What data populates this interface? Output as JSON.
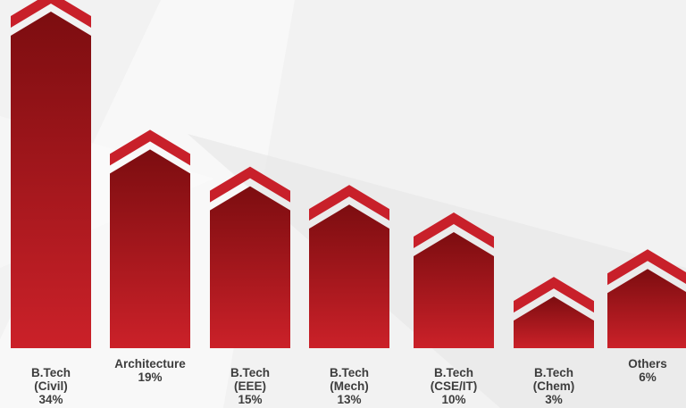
{
  "chart_data": {
    "type": "bar",
    "title": "",
    "xlabel": "",
    "ylabel": "",
    "ylim": [
      0,
      34
    ],
    "grid": false,
    "legend": "none",
    "categories": [
      {
        "label": "B.Tech\n(Civil)\n34%",
        "value": 34
      },
      {
        "label": "Architecture\n19%",
        "value": 19
      },
      {
        "label": "B.Tech\n(EEE)\n15%",
        "value": 15
      },
      {
        "label": "B.Tech\n(Mech)\n13%",
        "value": 13
      },
      {
        "label": "B.Tech\n(CSE/IT)\n10%",
        "value": 10
      },
      {
        "label": "B.Tech\n(Chem)\n3%",
        "value": 3
      },
      {
        "label": "Others\n6%",
        "value": 6
      }
    ],
    "colors": {
      "bar_top": "#7c0d10",
      "bar_bottom": "#cb2129",
      "chevron": "#c8202a",
      "label": "#3d3d3d",
      "background_light": "#f2f2f2",
      "background_shade": "#e2e2e2"
    }
  }
}
